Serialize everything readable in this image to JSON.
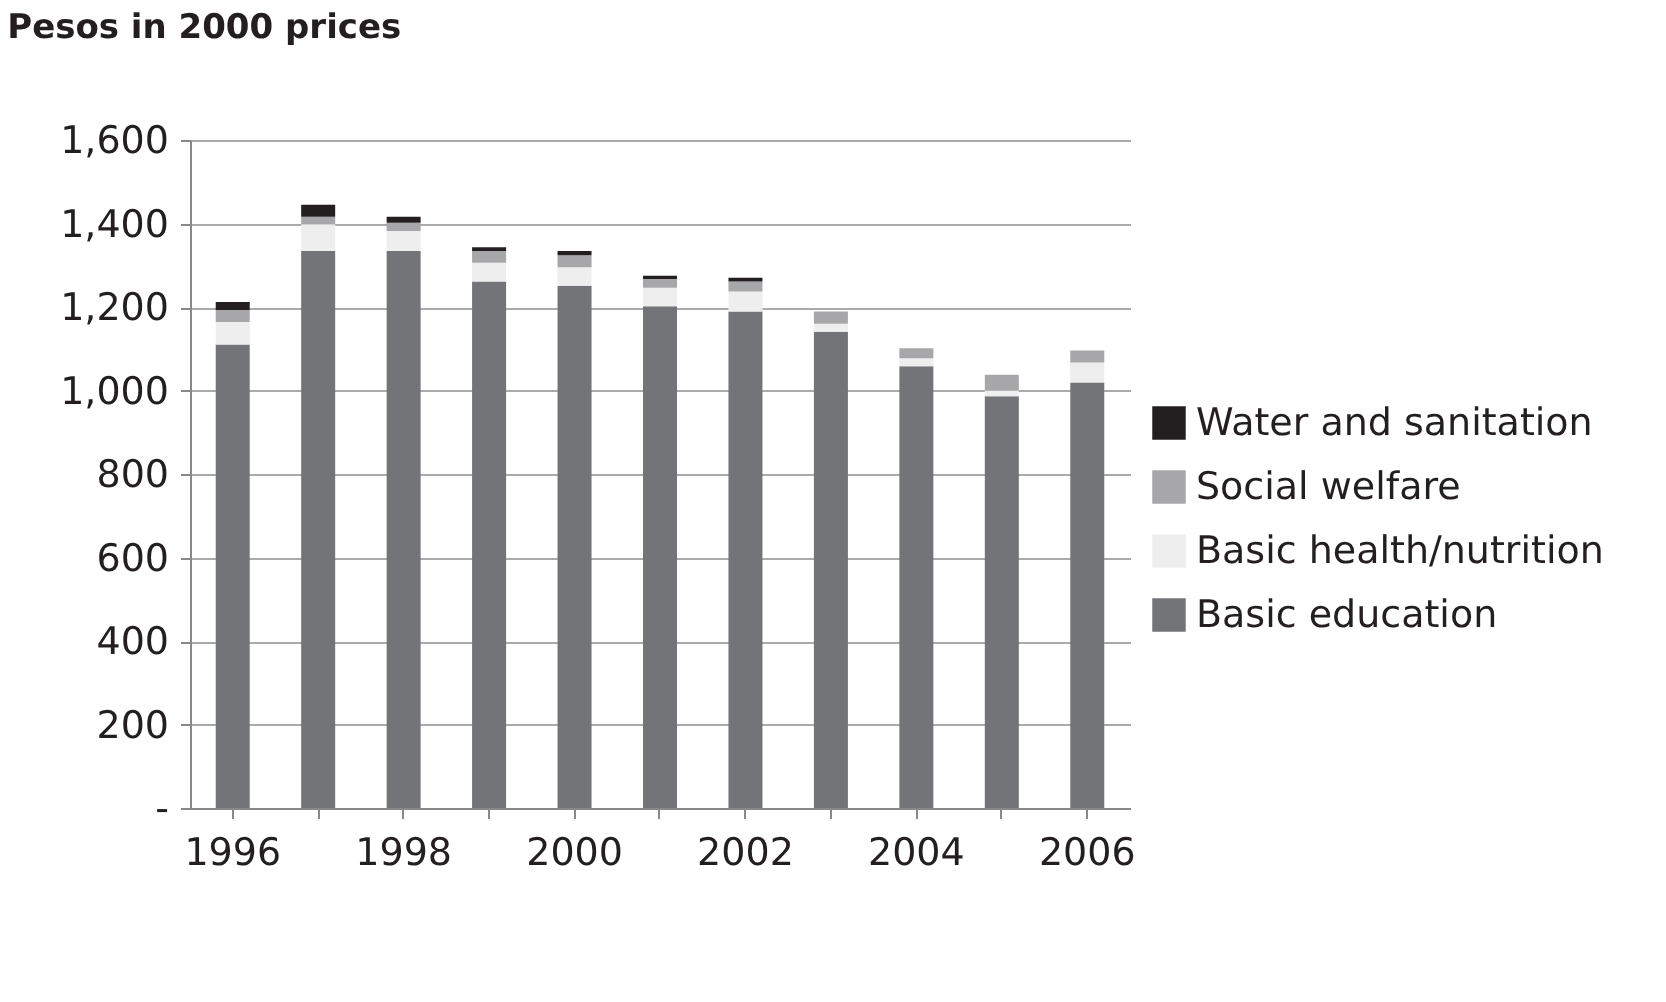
{
  "chart_data": {
    "type": "bar",
    "stacked": true,
    "title": "Pesos in 2000 prices",
    "categories": [
      "1996",
      null,
      "1998",
      null,
      "2000",
      null,
      "2002",
      null,
      "2004",
      null,
      "2006"
    ],
    "series": [
      {
        "name": "Basic education",
        "color": "#737478",
        "values": [
          1110,
          1334,
          1334,
          1261,
          1251,
          1202,
          1189,
          1141,
          1058,
          986,
          1019
        ]
      },
      {
        "name": "Basic health/nutrition",
        "color": "#eeeeee",
        "values": [
          54,
          64,
          48,
          45,
          44,
          44,
          48,
          19,
          19,
          14,
          48
        ]
      },
      {
        "name": "Social welfare",
        "color": "#a7a7a9",
        "values": [
          29,
          18,
          20,
          28,
          29,
          21,
          24,
          29,
          24,
          38,
          29
        ]
      },
      {
        "name": "Water and sanitation",
        "color": "#231f20",
        "values": [
          19,
          29,
          14,
          9,
          10,
          8,
          9,
          null,
          null,
          null,
          null
        ]
      }
    ],
    "ylim": [
      0,
      1600
    ],
    "yticks": [
      {
        "value": 0,
        "label": "-"
      },
      200,
      400,
      600,
      800,
      {
        "value": 1000,
        "label": "1,000"
      },
      {
        "value": 1200,
        "label": "1,200"
      },
      {
        "value": 1400,
        "label": "1,400"
      },
      {
        "value": 1600,
        "label": "1,600"
      }
    ],
    "grid": "y",
    "legend": "right"
  }
}
